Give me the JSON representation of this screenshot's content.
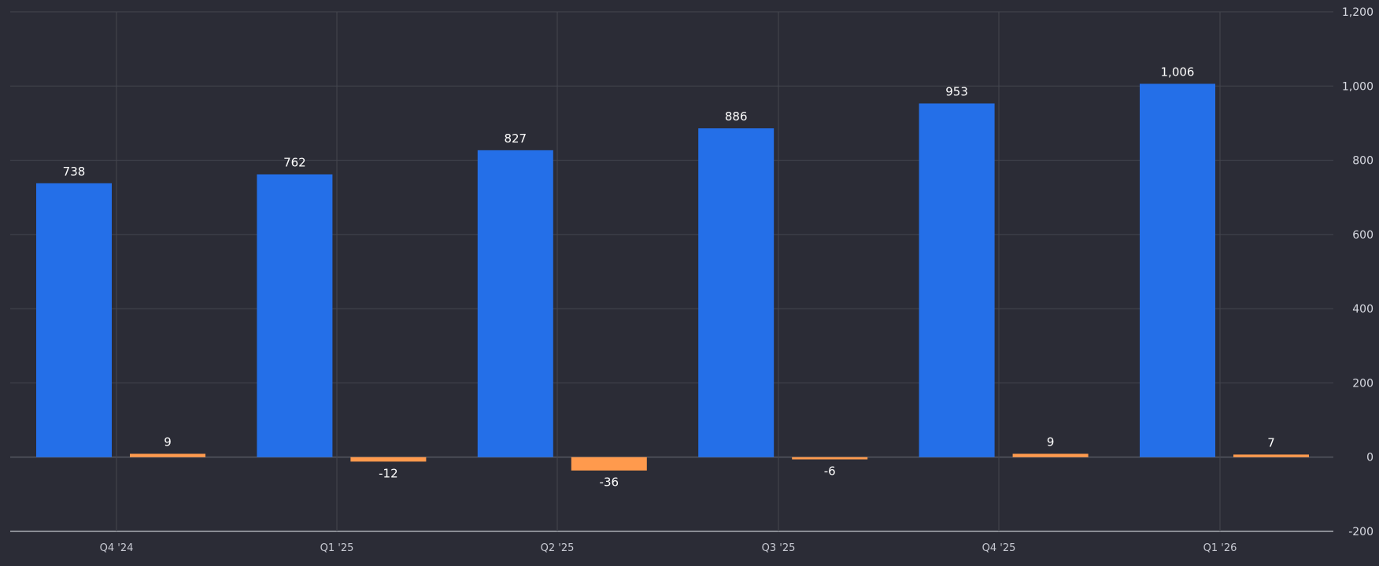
{
  "chart_data": {
    "type": "bar",
    "categories": [
      "Q4 '24",
      "Q1 '25",
      "Q2 '25",
      "Q3 '25",
      "Q4 '25",
      "Q1 '26"
    ],
    "series": [
      {
        "values": [
          738,
          762,
          827,
          886,
          953,
          1006
        ],
        "labels": [
          "738",
          "762",
          "827",
          "886",
          "953",
          "1,006"
        ],
        "color": "#246fe8"
      },
      {
        "values": [
          9,
          -12,
          -36,
          -6,
          9,
          7
        ],
        "labels": [
          "9",
          "-12",
          "-36",
          "-6",
          "9",
          "7"
        ],
        "color": "#ff9a4d"
      }
    ],
    "y_axis": {
      "ylim": [
        -200,
        1200
      ],
      "ticks": [
        1200,
        1000,
        800,
        600,
        400,
        200,
        0,
        -200
      ],
      "tick_labels": [
        "1,200",
        "1,000",
        "800",
        "600",
        "400",
        "200",
        "0",
        "-200"
      ],
      "position": "right"
    },
    "grid": true,
    "colors": {
      "background": "#2b2c36",
      "grid": "#44464f",
      "zero_line": "#6a6c75",
      "axis_line": "#a9abb3"
    }
  }
}
